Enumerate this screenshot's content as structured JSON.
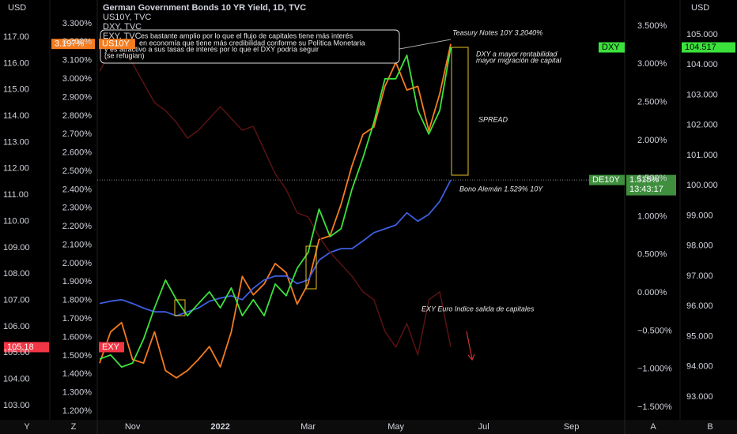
{
  "chart_data": [
    {
      "type": "line",
      "title": "German Government Bonds 10 YR Yield, 1D, TVC",
      "categories": [
        null,
        null,
        null,
        "Nov",
        null,
        null,
        null,
        null,
        null,
        null,
        null,
        "2022",
        null,
        null,
        null,
        null,
        null,
        null,
        null,
        "Mar",
        null,
        null,
        null,
        null,
        null,
        null,
        null,
        "May",
        null,
        null,
        null,
        null,
        null,
        null,
        null,
        "Jul",
        null,
        null,
        null,
        null,
        null,
        null,
        null,
        "Sep",
        null,
        null,
        null,
        null
      ],
      "ylim": [
        1.153,
        3.428
      ],
      "yticks": [
        {
          "value": 3.3,
          "label": "3.300%"
        },
        {
          "value": 3.2,
          "label": "3.200%"
        },
        {
          "value": 3.1,
          "label": "3.100%"
        },
        {
          "value": 3.0,
          "label": "3.000%"
        },
        {
          "value": 2.9,
          "label": "2.900%"
        },
        {
          "value": 2.8,
          "label": "2.800%"
        },
        {
          "value": 2.7,
          "label": "2.700%"
        },
        {
          "value": 2.6,
          "label": "2.600%"
        },
        {
          "value": 2.5,
          "label": "2.500%"
        },
        {
          "value": 2.4,
          "label": "2.400%"
        },
        {
          "value": 2.3,
          "label": "2.300%"
        },
        {
          "value": 2.2,
          "label": "2.200%"
        },
        {
          "value": 2.1,
          "label": "2.100%"
        },
        {
          "value": 2.0,
          "label": "2.000%"
        },
        {
          "value": 1.9,
          "label": "1.900%"
        },
        {
          "value": 1.8,
          "label": "1.800%"
        },
        {
          "value": 1.7,
          "label": "1.700%"
        },
        {
          "value": 1.6,
          "label": "1.600%"
        },
        {
          "value": 1.5,
          "label": "1.500%"
        },
        {
          "value": 1.4,
          "label": "1.400%"
        },
        {
          "value": 1.3,
          "label": "1.300%"
        },
        {
          "value": 1.2,
          "label": "1.200%"
        }
      ],
      "y2lim": [
        -1.666,
        3.842
      ],
      "y2ticks": [
        {
          "value": 3.5,
          "label": "3.500%"
        },
        {
          "value": 3.0,
          "label": "3.000%"
        },
        {
          "value": 2.5,
          "label": "2.500%"
        },
        {
          "value": 2.0,
          "label": "2.000%"
        },
        {
          "value": 1.5,
          "label": "1.500%"
        },
        {
          "value": 1.0,
          "label": "1.000%"
        },
        {
          "value": 0.5,
          "label": "0.500%"
        },
        {
          "value": 0,
          "label": "0.000%"
        },
        {
          "value": -0.5,
          "label": "−0.500%"
        },
        {
          "value": -1.0,
          "label": "−1.000%"
        },
        {
          "value": -1.5,
          "label": "−1.500%"
        }
      ],
      "series": [
        {
          "name": "US10Y",
          "legend": "US10Y, TVC",
          "last_label": "3.197%",
          "color": "#f57c1f",
          "axis": "y",
          "values": [
            1.46,
            1.63,
            1.68,
            1.48,
            1.46,
            1.63,
            1.42,
            1.38,
            1.42,
            1.48,
            1.55,
            1.44,
            1.63,
            1.93,
            1.83,
            1.89,
            2.0,
            1.95,
            1.78,
            1.89,
            2.13,
            2.15,
            2.32,
            2.53,
            2.7,
            2.74,
            2.96,
            3.09,
            2.94,
            2.96,
            2.72,
            2.92,
            3.19,
            null,
            null,
            null,
            null,
            null,
            null,
            null,
            null,
            null,
            null,
            null,
            null,
            null,
            null,
            null
          ]
        },
        {
          "name": "DE10Y",
          "last_label": "1.515%",
          "countdown": "13:43:17",
          "color": "#3d5fe0",
          "axis": "y2",
          "values": [
            -0.14,
            -0.11,
            -0.09,
            -0.14,
            -0.2,
            -0.25,
            -0.25,
            -0.3,
            -0.25,
            -0.2,
            -0.11,
            -0.07,
            -0.04,
            -0.09,
            0.06,
            0.17,
            0.22,
            0.22,
            0.12,
            0.17,
            0.43,
            0.53,
            0.58,
            0.58,
            0.68,
            0.79,
            0.84,
            0.89,
            1.05,
            0.94,
            1.03,
            1.2,
            1.48,
            null,
            null,
            null,
            null,
            null,
            null,
            null,
            null,
            null,
            null,
            null,
            null,
            null,
            null,
            null
          ]
        }
      ]
    },
    {
      "type": "line",
      "categories": [
        null,
        null,
        null,
        "Nov",
        null,
        null,
        null,
        null,
        null,
        null,
        null,
        "2022",
        null,
        null,
        null,
        null,
        null,
        null,
        null,
        "Mar",
        null,
        null,
        null,
        null,
        null,
        null,
        null,
        "May",
        null,
        null,
        null,
        null,
        null,
        null,
        null,
        "Jul",
        null,
        null,
        null,
        null,
        null,
        null,
        null,
        "Sep",
        null,
        null,
        null,
        null
      ],
      "ylim": [
        102.46,
        118.41
      ],
      "yticks": [
        {
          "value": 117,
          "label": "117.00"
        },
        {
          "value": 116,
          "label": "116.00"
        },
        {
          "value": 115,
          "label": "115.00"
        },
        {
          "value": 114,
          "label": "114.00"
        },
        {
          "value": 113,
          "label": "113.00"
        },
        {
          "value": 112,
          "label": "112.00"
        },
        {
          "value": 111,
          "label": "111.00"
        },
        {
          "value": 110,
          "label": "110.00"
        },
        {
          "value": 109,
          "label": "109.00"
        },
        {
          "value": 108,
          "label": "108.00"
        },
        {
          "value": 107,
          "label": "107.00"
        },
        {
          "value": 106,
          "label": "106.00"
        },
        {
          "value": 105,
          "label": "105.00"
        },
        {
          "value": 104,
          "label": "104.00"
        },
        {
          "value": 103,
          "label": "103.00"
        }
      ],
      "y2lim": [
        92.24,
        106.15
      ],
      "y2ticks": [
        {
          "value": 105,
          "label": "105.000"
        },
        {
          "value": 104,
          "label": "104.000"
        },
        {
          "value": 103,
          "label": "103.000"
        },
        {
          "value": 102,
          "label": "102.000"
        },
        {
          "value": 101,
          "label": "101.000"
        },
        {
          "value": 100,
          "label": "100.000"
        },
        {
          "value": 99,
          "label": "99.000"
        },
        {
          "value": 98,
          "label": "98.000"
        },
        {
          "value": 97,
          "label": "97.000"
        },
        {
          "value": 96,
          "label": "96.000"
        },
        {
          "value": 95,
          "label": "95.000"
        },
        {
          "value": 94,
          "label": "94.000"
        },
        {
          "value": 93,
          "label": "93.000"
        }
      ],
      "series": [
        {
          "name": "EXY",
          "legend": "EXY, TVC",
          "last_label": "105.18",
          "color": "#5a1212",
          "axis": "y",
          "values": [
            115.71,
            116.46,
            116.67,
            116.01,
            115.26,
            114.51,
            114.21,
            113.76,
            113.16,
            113.46,
            113.91,
            114.36,
            113.91,
            113.46,
            113.61,
            112.71,
            111.81,
            111.21,
            110.32,
            110.17,
            109.42,
            108.82,
            108.37,
            107.92,
            107.32,
            107.02,
            105.82,
            105.22,
            106.12,
            104.92,
            107.02,
            107.32,
            105.22,
            null,
            null,
            null,
            null,
            null,
            null,
            null,
            null,
            null,
            null,
            null,
            null,
            null,
            null,
            null
          ]
        },
        {
          "name": "DXY",
          "legend": "DXY, TVC",
          "last_label": "104.517",
          "color": "#3ce23c",
          "axis": "y2",
          "values": [
            94.25,
            94.39,
            93.99,
            94.12,
            94.91,
            95.95,
            96.87,
            96.22,
            95.69,
            96.09,
            96.48,
            95.95,
            96.61,
            95.69,
            96.22,
            95.69,
            96.74,
            96.35,
            97.26,
            97.78,
            99.22,
            98.31,
            98.57,
            99.88,
            100.92,
            102.1,
            103.54,
            103.54,
            104.32,
            102.49,
            101.71,
            102.49,
            104.58,
            null,
            null,
            null,
            null,
            null,
            null,
            null,
            null,
            null,
            null,
            null,
            null,
            null,
            null,
            null
          ]
        }
      ]
    }
  ],
  "axis_units": [
    "USD",
    "USD"
  ],
  "buttons": [
    "Y",
    "Z",
    "A",
    "B"
  ],
  "annotations": {
    "comment": [
      "es bastante amplio por lo que el flujo de capitales tiene más interés",
      "en economía que tiene más credibilidad conforme su Política Monetaria",
      "y es atractivo a sus tasas de interés por lo que el DXY podría seguir",
      " (se refugian)"
    ],
    "treasury": "Teasury Notes 10Y 3.2040%",
    "dxy": [
      "DXY a mayor rentabilidad",
      "mayor migración de capital"
    ],
    "spread": "SPREAD",
    "bund": "Bono Alemán 1.529% 10Y",
    "exy": "EXY Euro Indice salida de capitales"
  }
}
